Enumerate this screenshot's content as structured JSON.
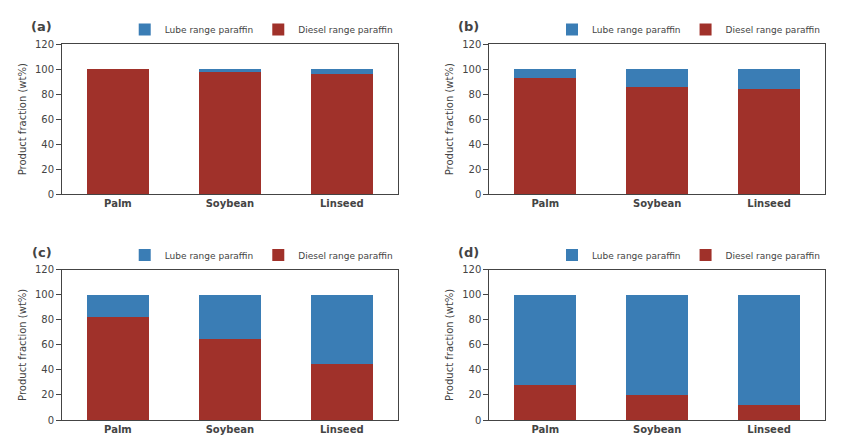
{
  "chart_data": [
    {
      "type": "bar",
      "stacked": true,
      "annotations": [
        "(a)"
      ],
      "categories": [
        "Palm",
        "Soybean",
        "Linseed"
      ],
      "series": [
        {
          "name": "Diesel range paraffin",
          "color": "#A0312A",
          "values": [
            100,
            98,
            96
          ]
        },
        {
          "name": "Lube range paraffin",
          "color": "#3A7DB5",
          "values": [
            0,
            2,
            4
          ]
        }
      ],
      "ylabel": "Product fraction (wt%)",
      "ylim": [
        0,
        120
      ],
      "yticks": [
        0,
        20,
        40,
        60,
        80,
        100,
        120
      ],
      "grid": false,
      "legend": "upper right"
    },
    {
      "type": "bar",
      "stacked": true,
      "annotations": [
        "(b)"
      ],
      "categories": [
        "Palm",
        "Soybean",
        "Linseed"
      ],
      "series": [
        {
          "name": "Diesel range paraffin",
          "color": "#A0312A",
          "values": [
            93,
            86,
            84
          ]
        },
        {
          "name": "Lube range paraffin",
          "color": "#3A7DB5",
          "values": [
            7,
            14,
            16
          ]
        }
      ],
      "ylabel": "Product fraction (wt%)",
      "ylim": [
        0,
        120
      ],
      "yticks": [
        0,
        20,
        40,
        60,
        80,
        100,
        120
      ],
      "grid": false,
      "legend": "upper right"
    },
    {
      "type": "bar",
      "stacked": true,
      "annotations": [
        "(c)"
      ],
      "categories": [
        "Palm",
        "Soybean",
        "Linseed"
      ],
      "series": [
        {
          "name": "Diesel range paraffin",
          "color": "#A0312A",
          "values": [
            82,
            65,
            45
          ]
        },
        {
          "name": "Lube range paraffin",
          "color": "#3A7DB5",
          "values": [
            18,
            35,
            55
          ]
        }
      ],
      "ylabel": "Product fraction (wt%)",
      "ylim": [
        0,
        120
      ],
      "yticks": [
        0,
        20,
        40,
        60,
        80,
        100,
        120
      ],
      "grid": false,
      "legend": "upper right"
    },
    {
      "type": "bar",
      "stacked": true,
      "annotations": [
        "(d)"
      ],
      "categories": [
        "Palm",
        "Soybean",
        "Linseed"
      ],
      "series": [
        {
          "name": "Diesel range paraffin",
          "color": "#A0312A",
          "values": [
            28,
            20,
            12
          ]
        },
        {
          "name": "Lube range paraffin",
          "color": "#3A7DB5",
          "values": [
            72,
            80,
            88
          ]
        }
      ],
      "ylabel": "Product fraction (wt%)",
      "ylim": [
        0,
        120
      ],
      "yticks": [
        0,
        20,
        40,
        60,
        80,
        100,
        120
      ],
      "grid": false,
      "legend": "upper right"
    }
  ]
}
